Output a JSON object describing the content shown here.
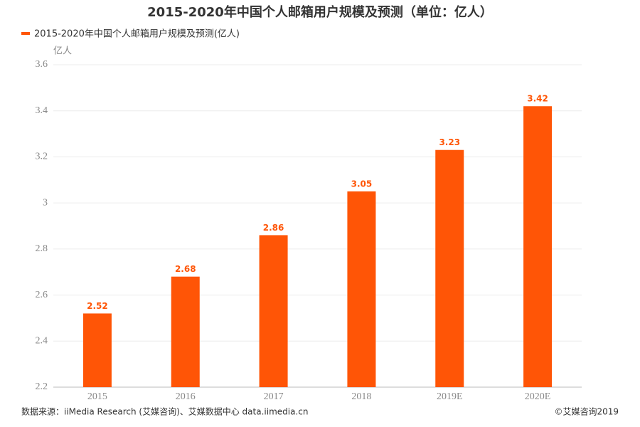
{
  "chart_data": {
    "type": "bar",
    "title": "2015-2020年中国个人邮箱用户规模及预测（单位：亿人）",
    "legend": "2015-2020年中国个人邮箱用户规模及预测(亿人)",
    "y_unit": "亿人",
    "categories": [
      "2015",
      "2016",
      "2017",
      "2018",
      "2019E",
      "2020E"
    ],
    "values": [
      2.52,
      2.68,
      2.86,
      3.05,
      3.23,
      3.42
    ],
    "color": "#ff5506",
    "ylim": [
      2.2,
      3.6
    ],
    "yticks": [
      2.2,
      2.4,
      2.6,
      2.8,
      3,
      3.2,
      3.4,
      3.6
    ],
    "grid": true,
    "source": "数据来源：iiMedia Research (艾媒咨询)、艾媒数据中心 data.iimedia.cn",
    "copyright": "©艾媒咨询2019"
  }
}
